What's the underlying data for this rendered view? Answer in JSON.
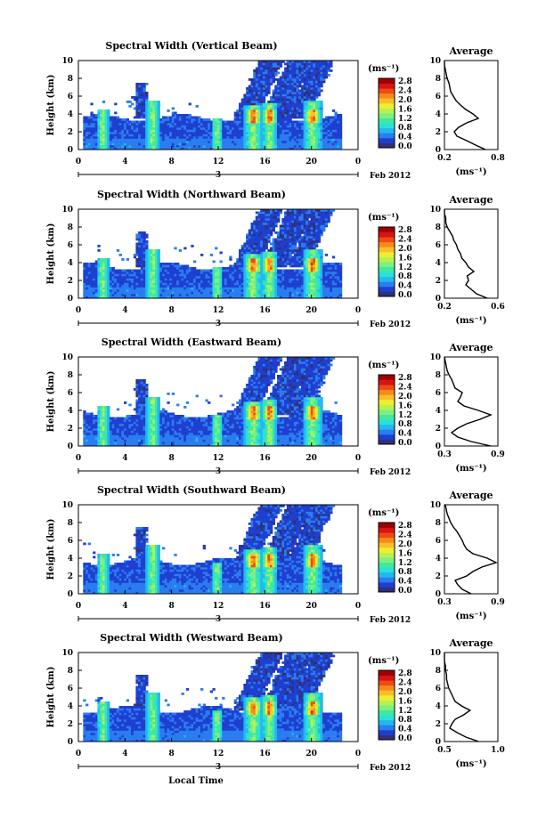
{
  "chart_data": {
    "type": "heatmap",
    "xlabel": "Local Time",
    "date_label": "3",
    "month_label": "Feb 2012",
    "x_ticks": [
      "0",
      "4",
      "8",
      "12",
      "16",
      "20",
      "0"
    ],
    "xlim": [
      0,
      24
    ],
    "ylabel": "Height (km)",
    "y_ticks": [
      "0",
      "2",
      "4",
      "6",
      "8",
      "10"
    ],
    "ylim": [
      0,
      10
    ],
    "colorbar": {
      "unit_label": "(ms⁻¹)",
      "ticks": [
        "0.0",
        "0.4",
        "0.8",
        "1.2",
        "1.6",
        "2.0",
        "2.4",
        "2.8"
      ],
      "range": [
        0,
        3.0
      ],
      "colors": [
        "#30317a",
        "#1f3fd0",
        "#2a7df0",
        "#22b8f0",
        "#2be0d8",
        "#3fe9a0",
        "#7ff080",
        "#b8f250",
        "#f0ee30",
        "#f8c028",
        "#f88a1c",
        "#f04a14",
        "#d81414",
        "#a00000"
      ]
    },
    "profile_title": "Average",
    "profile_xlabel": "(ms⁻¹)",
    "panels": [
      {
        "title": "Spectral Width (Vertical Beam)",
        "profile": {
          "x_ticks": [
            "0.2",
            "0.8"
          ],
          "xlim": [
            0.2,
            0.8
          ],
          "heights": [
            0,
            0.5,
            1,
            1.5,
            2,
            2.5,
            3,
            3.5,
            4,
            4.5,
            5,
            5.5,
            6,
            6.5,
            7,
            7.5,
            8,
            8.5,
            9,
            9.5,
            10
          ],
          "values": [
            0.66,
            0.55,
            0.45,
            0.34,
            0.31,
            0.36,
            0.45,
            0.58,
            0.52,
            0.44,
            0.38,
            0.33,
            0.3,
            0.27,
            0.26,
            0.25,
            0.23,
            0.22,
            0.21,
            0.2,
            0.2
          ]
        }
      },
      {
        "title": "Spectral Width (Northward Beam)",
        "profile": {
          "x_ticks": [
            "0.2",
            "0.6"
          ],
          "xlim": [
            0.2,
            0.6
          ],
          "heights": [
            0,
            0.5,
            1,
            1.5,
            2,
            2.5,
            3,
            3.5,
            4,
            4.5,
            5,
            5.5,
            6,
            6.5,
            7,
            7.5,
            8,
            8.5,
            9,
            9.5,
            10
          ],
          "values": [
            0.52,
            0.44,
            0.4,
            0.36,
            0.38,
            0.37,
            0.42,
            0.38,
            0.36,
            0.33,
            0.32,
            0.3,
            0.29,
            0.27,
            0.26,
            0.24,
            0.22,
            0.21,
            0.21,
            0.2,
            0.2
          ]
        }
      },
      {
        "title": "Spectral Width (Eastward Beam)",
        "profile": {
          "x_ticks": [
            "0.3",
            "0.9"
          ],
          "xlim": [
            0.3,
            0.9
          ],
          "heights": [
            0,
            0.5,
            1,
            1.5,
            2,
            2.5,
            3,
            3.5,
            4,
            4.5,
            5,
            5.5,
            6,
            6.5,
            7,
            7.5,
            8,
            8.5,
            9,
            9.5,
            10
          ],
          "values": [
            0.82,
            0.6,
            0.45,
            0.38,
            0.45,
            0.55,
            0.7,
            0.82,
            0.68,
            0.52,
            0.45,
            0.48,
            0.5,
            0.42,
            0.4,
            0.38,
            0.35,
            0.33,
            0.32,
            0.31,
            0.3
          ]
        }
      },
      {
        "title": "Spectral Width (Southward Beam)",
        "profile": {
          "x_ticks": [
            "0.3",
            "0.9"
          ],
          "xlim": [
            0.3,
            0.9
          ],
          "heights": [
            0,
            0.5,
            1,
            1.5,
            2,
            2.5,
            3,
            3.5,
            4,
            4.5,
            5,
            5.5,
            6,
            6.5,
            7,
            7.5,
            8,
            8.5,
            9,
            9.5,
            10
          ],
          "values": [
            0.6,
            0.5,
            0.45,
            0.42,
            0.55,
            0.62,
            0.72,
            0.88,
            0.78,
            0.62,
            0.55,
            0.52,
            0.5,
            0.47,
            0.44,
            0.4,
            0.37,
            0.35,
            0.33,
            0.32,
            0.31
          ]
        }
      },
      {
        "title": "Spectral Width (Westward Beam)",
        "profile": {
          "x_ticks": [
            "0.5",
            "1.0"
          ],
          "xlim": [
            0.5,
            1.0
          ],
          "heights": [
            0,
            0.5,
            1,
            1.5,
            2,
            2.5,
            3,
            3.5,
            4,
            4.5,
            5,
            5.5,
            6,
            6.5,
            7,
            7.5,
            8,
            8.5,
            9,
            9.5,
            10
          ],
          "values": [
            0.82,
            0.7,
            0.62,
            0.55,
            0.57,
            0.6,
            0.68,
            0.74,
            0.66,
            0.6,
            0.58,
            0.56,
            0.54,
            0.53,
            0.52,
            0.52,
            0.51,
            0.51,
            0.5,
            0.5,
            0.5
          ]
        }
      }
    ]
  }
}
